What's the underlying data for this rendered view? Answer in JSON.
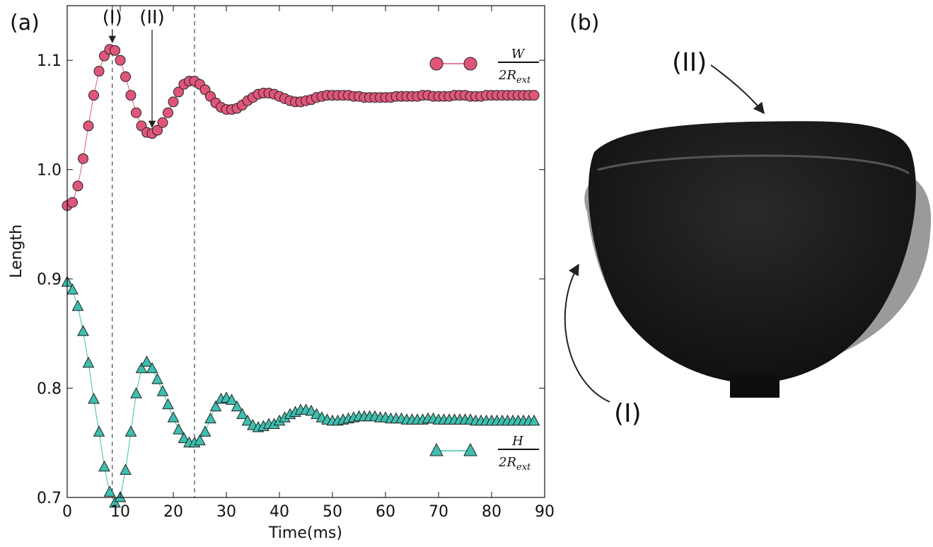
{
  "chart_data": {
    "type": "scatter",
    "panel_label": "(a)",
    "xlabel": "Time(ms)",
    "ylabel": "Length",
    "xlim": [
      0,
      90
    ],
    "ylim": [
      0.7,
      1.15
    ],
    "xticks": [
      0,
      10,
      20,
      30,
      40,
      50,
      60,
      70,
      80,
      90
    ],
    "yticks": [
      0.7,
      0.8,
      0.9,
      {
        "value": 1,
        "label": "1.0"
      },
      1.1
    ],
    "grid": false,
    "vlines": [
      8.5,
      24
    ],
    "annotations": [
      {
        "text": "(I)",
        "x": 8.5
      },
      {
        "text": "(II)",
        "x": 16
      }
    ],
    "x": [
      0,
      1,
      2,
      3,
      4,
      5,
      6,
      7,
      8,
      9,
      10,
      11,
      12,
      13,
      14,
      15,
      16,
      17,
      18,
      19,
      20,
      21,
      22,
      23,
      24,
      25,
      26,
      27,
      28,
      29,
      30,
      31,
      32,
      33,
      34,
      35,
      36,
      37,
      38,
      39,
      40,
      41,
      42,
      43,
      44,
      45,
      46,
      47,
      48,
      49,
      50,
      51,
      52,
      53,
      54,
      55,
      56,
      57,
      58,
      59,
      60,
      61,
      62,
      63,
      64,
      65,
      66,
      67,
      68,
      69,
      70,
      71,
      72,
      73,
      74,
      75,
      76,
      77,
      78,
      79,
      80,
      81,
      82,
      83,
      84,
      85,
      86,
      87,
      88
    ],
    "series": [
      {
        "name": "W",
        "name_denominator": "2R",
        "name_subscript": "ext",
        "marker": "circle",
        "color": "#e0567a",
        "values": [
          0.967,
          0.97,
          0.985,
          1.01,
          1.04,
          1.068,
          1.09,
          1.104,
          1.11,
          1.109,
          1.1,
          1.085,
          1.068,
          1.052,
          1.04,
          1.034,
          1.033,
          1.036,
          1.043,
          1.052,
          1.062,
          1.071,
          1.078,
          1.081,
          1.081,
          1.078,
          1.073,
          1.067,
          1.061,
          1.057,
          1.055,
          1.055,
          1.056,
          1.059,
          1.063,
          1.066,
          1.069,
          1.07,
          1.07,
          1.069,
          1.067,
          1.065,
          1.063,
          1.062,
          1.062,
          1.063,
          1.064,
          1.066,
          1.067,
          1.068,
          1.068,
          1.068,
          1.068,
          1.068,
          1.067,
          1.067,
          1.066,
          1.066,
          1.066,
          1.066,
          1.066,
          1.066,
          1.067,
          1.067,
          1.067,
          1.067,
          1.067,
          1.068,
          1.068,
          1.067,
          1.067,
          1.067,
          1.067,
          1.068,
          1.068,
          1.068,
          1.067,
          1.067,
          1.067,
          1.068,
          1.068,
          1.068,
          1.068,
          1.068,
          1.068,
          1.068,
          1.068,
          1.068,
          1.068
        ]
      },
      {
        "name": "H",
        "name_denominator": "2R",
        "name_subscript": "ext",
        "marker": "triangle",
        "color": "#3dbfae",
        "values": [
          0.897,
          0.89,
          0.875,
          0.852,
          0.823,
          0.79,
          0.76,
          0.728,
          0.705,
          0.695,
          0.7,
          0.725,
          0.76,
          0.795,
          0.818,
          0.824,
          0.818,
          0.808,
          0.797,
          0.785,
          0.773,
          0.762,
          0.754,
          0.75,
          0.75,
          0.752,
          0.76,
          0.772,
          0.783,
          0.79,
          0.791,
          0.789,
          0.783,
          0.776,
          0.77,
          0.766,
          0.764,
          0.765,
          0.767,
          0.767,
          0.77,
          0.773,
          0.776,
          0.778,
          0.78,
          0.78,
          0.779,
          0.776,
          0.773,
          0.771,
          0.77,
          0.77,
          0.771,
          0.772,
          0.773,
          0.774,
          0.774,
          0.774,
          0.774,
          0.773,
          0.773,
          0.772,
          0.772,
          0.772,
          0.771,
          0.771,
          0.771,
          0.771,
          0.772,
          0.772,
          0.771,
          0.771,
          0.771,
          0.771,
          0.771,
          0.771,
          0.771,
          0.77,
          0.77,
          0.77,
          0.77,
          0.77,
          0.77,
          0.77,
          0.77,
          0.77,
          0.77,
          0.77,
          0.77
        ]
      }
    ]
  },
  "image_panel": {
    "panel_label": "(b)",
    "labels": [
      "(I)",
      "(II)"
    ]
  }
}
